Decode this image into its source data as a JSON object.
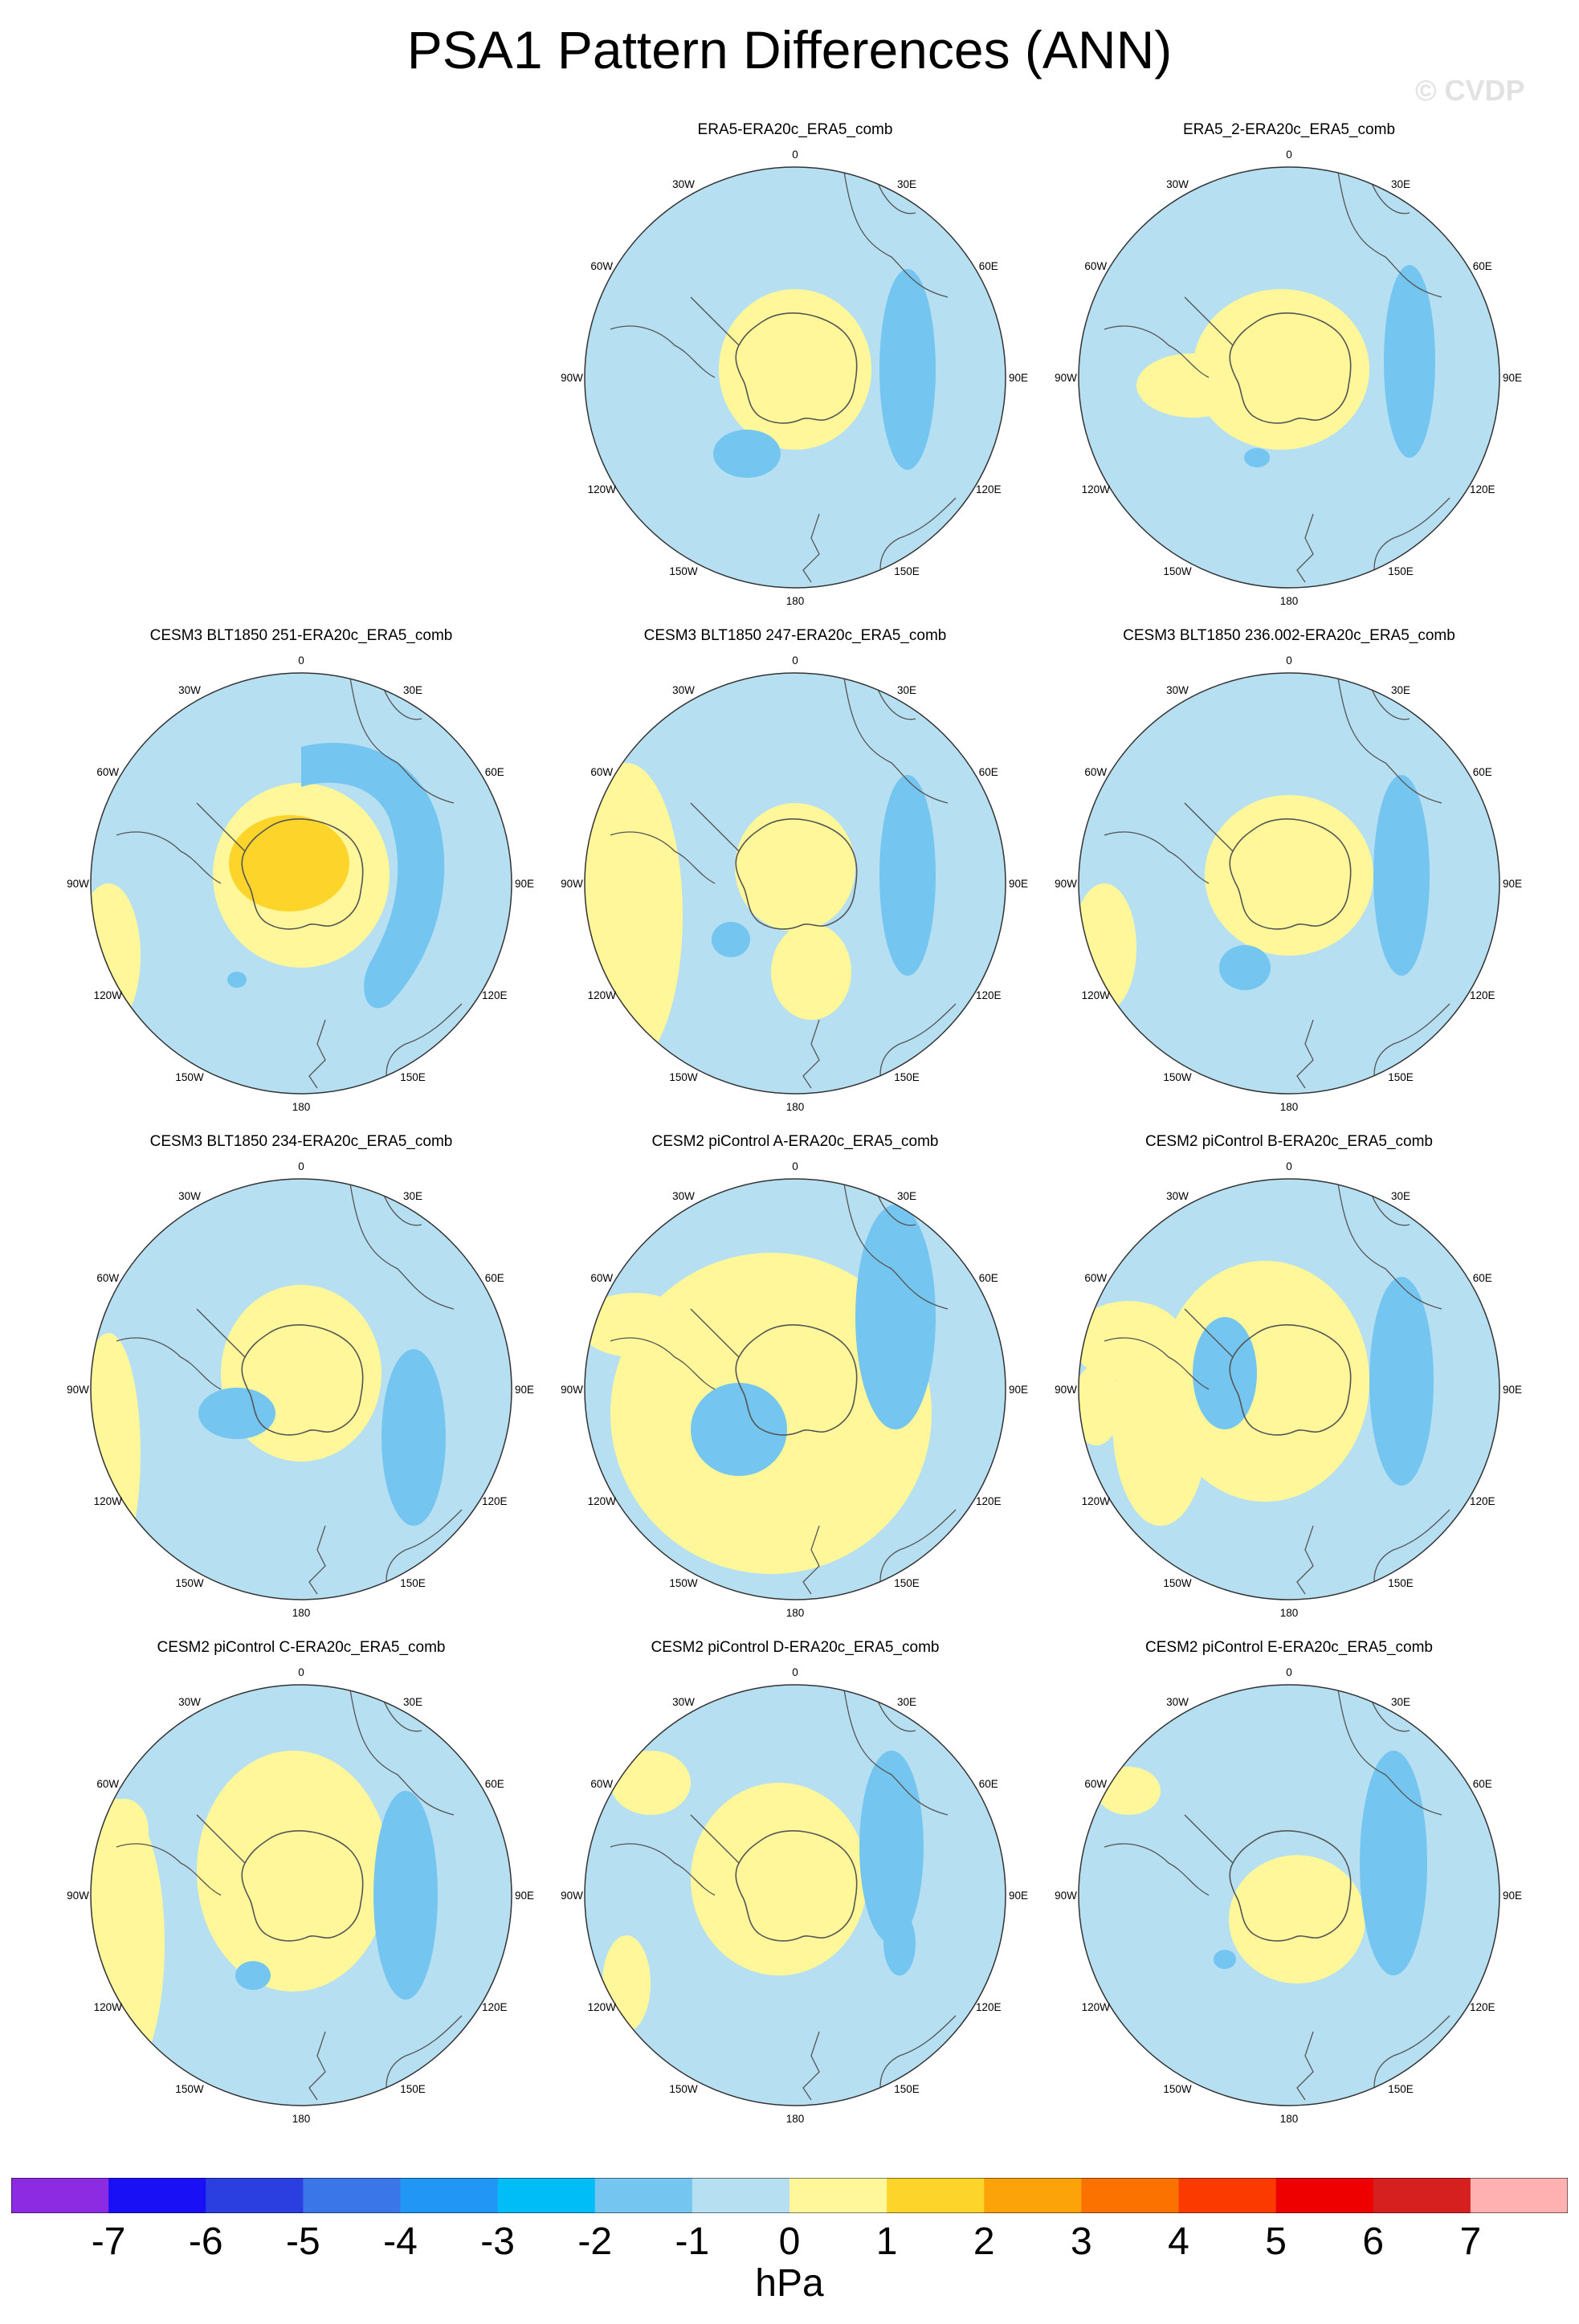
{
  "figure": {
    "title": "PSA1 Pattern Differences (ANN)",
    "watermark": "© CVDP"
  },
  "chart_data": {
    "type": "polar_map",
    "projection": "south polar stereographic",
    "variable_units": "hPa",
    "longitude_labels": [
      "0",
      "30E",
      "60E",
      "90E",
      "120E",
      "150E",
      "180",
      "150W",
      "120W",
      "90W",
      "60W",
      "30W"
    ],
    "panels": [
      {
        "title": "ERA5-ERA20c_ERA5_comb",
        "positive_extent": "moderate",
        "positive_max": 1,
        "negative_min": -2,
        "features": [
          "positive 0-1 over Antarctica and Weddell Sea",
          "negative -1 to -2 band near 60E-90E",
          "negative -1 to -2 cell near 120W-150W"
        ]
      },
      {
        "title": "ERA5_2-ERA20c_ERA5_comb",
        "positive_extent": "moderate",
        "positive_max": 1,
        "negative_min": -2,
        "features": [
          "positive 0-1 over Antarctica extending toward 90W",
          "negative -1 to -2 band near 60E-90E",
          "small negative cell near 150W"
        ]
      },
      {
        "title": "CESM3 BLT1850 251-ERA20c_ERA5_comb",
        "positive_extent": "strong",
        "positive_max": 2,
        "negative_min": -2,
        "features": [
          "positive 1-2 core over West Antarctica",
          "positive 0-1 ring around continent",
          "negative -1 to -2 arc from 30E to 120E",
          "positive 0-1 near 90W-150W edge"
        ]
      },
      {
        "title": "CESM3 BLT1850 247-ERA20c_ERA5_comb",
        "positive_extent": "moderate",
        "positive_max": 1,
        "negative_min": -2,
        "features": [
          "positive 0-1 broad region along 60W-150W edge",
          "negative -1 to -2 band near 60E-90E",
          "small negative cell near 120W"
        ]
      },
      {
        "title": "CESM3 BLT1850 236.002-ERA20c_ERA5_comb",
        "positive_extent": "moderate",
        "positive_max": 1,
        "negative_min": -2,
        "features": [
          "positive 0-1 over Antarctica",
          "negative -1 to -2 band near 60E-90E",
          "negative cell near 120W-150W",
          "positive near 90W-120W edge"
        ]
      },
      {
        "title": "CESM3 BLT1850 234-ERA20c_ERA5_comb",
        "positive_extent": "moderate",
        "positive_max": 1,
        "negative_min": -2,
        "features": [
          "positive 0-1 over Antarctica",
          "negative -1 to -2 band near 90E-150E",
          "negative cell near 120W-150W",
          "positive near 90W-120W edge"
        ]
      },
      {
        "title": "CESM2 piControl A-ERA20c_ERA5_comb",
        "positive_extent": "broad",
        "positive_max": 1,
        "negative_min": -2,
        "features": [
          "positive 0-1 ring from 60W through 150W to 180",
          "negative -1 to -2 arc from 30E to 90E",
          "negative cell near 150W"
        ]
      },
      {
        "title": "CESM2 piControl B-ERA20c_ERA5_comb",
        "positive_extent": "broad",
        "positive_max": 1,
        "negative_min": -2,
        "features": [
          "positive 0-1 over Antarctica and Antarctic Peninsula sector",
          "negative -1 to -2 band near 60E-90E",
          "positive near 30W-60W"
        ]
      },
      {
        "title": "CESM2 piControl C-ERA20c_ERA5_comb",
        "positive_extent": "broad",
        "positive_max": 1,
        "negative_min": -2,
        "features": [
          "positive 0-1 over Antarctica",
          "positive 0-1 along 90W-150W edge",
          "negative -1 to -2 band near 60E-120E",
          "small negative cell near 120W"
        ]
      },
      {
        "title": "CESM2 piControl D-ERA20c_ERA5_comb",
        "positive_extent": "moderate",
        "positive_max": 1,
        "negative_min": -2,
        "features": [
          "positive 0-1 over Antarctica",
          "negative -1 to -2 band near 30E-90E",
          "positive near 60W and 120W edge"
        ]
      },
      {
        "title": "CESM2 piControl E-ERA20c_ERA5_comb",
        "positive_extent": "small",
        "positive_max": 1,
        "negative_min": -2,
        "features": [
          "positive 0-1 over East Antarctica",
          "negative -1 to -2 band near 30E-90E",
          "small negative cell near 120W",
          "positive near 60W edge"
        ]
      }
    ]
  },
  "colorbar": {
    "ticks": [
      "-7",
      "-6",
      "-5",
      "-4",
      "-3",
      "-2",
      "-1",
      "0",
      "1",
      "2",
      "3",
      "4",
      "5",
      "6",
      "7"
    ],
    "colors": [
      "#8d2be2",
      "#1a10f5",
      "#2b3fe0",
      "#3a76e8",
      "#2196f5",
      "#00bdf7",
      "#74c5f0",
      "#b6dff2",
      "#fff799",
      "#fdd42a",
      "#fca30a",
      "#fc7200",
      "#fb3a00",
      "#ee0000",
      "#d61f1f",
      "#ffb1b1"
    ],
    "units": "hPa"
  }
}
